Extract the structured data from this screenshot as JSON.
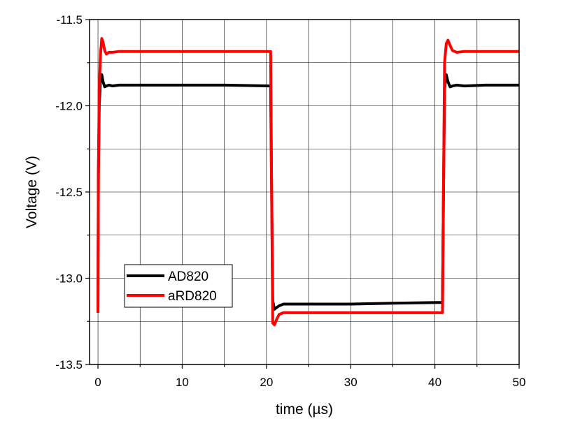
{
  "chart_data": {
    "type": "line",
    "title": "",
    "xlabel": "time (µs)",
    "ylabel": "Voltage (V)",
    "xlim": [
      -1,
      50
    ],
    "ylim": [
      -13.5,
      -11.5
    ],
    "xticks": [
      0,
      10,
      20,
      30,
      40,
      50
    ],
    "yticks": [
      -13.5,
      -13.0,
      -12.5,
      -12.0,
      -11.5
    ],
    "grid": true,
    "legend_position": "bottom-left",
    "series": [
      {
        "name": "AD820",
        "color": "#000000",
        "x": [
          0.0,
          0.05,
          0.15,
          0.3,
          0.45,
          0.6,
          0.8,
          1.0,
          1.3,
          1.7,
          2.5,
          5,
          10,
          15,
          20.5,
          20.6,
          20.75,
          20.95,
          21.2,
          21.5,
          22.0,
          23.0,
          30,
          35,
          40.9,
          41.0,
          41.15,
          41.35,
          41.55,
          41.8,
          42.1,
          42.6,
          43.5,
          46,
          50
        ],
        "values": [
          -13.2,
          -12.4,
          -12.0,
          -11.85,
          -11.82,
          -11.86,
          -11.89,
          -11.885,
          -11.88,
          -11.885,
          -11.88,
          -11.88,
          -11.88,
          -11.88,
          -11.885,
          -12.4,
          -13.13,
          -13.18,
          -13.17,
          -13.16,
          -13.15,
          -13.15,
          -13.15,
          -13.145,
          -13.14,
          -12.6,
          -11.9,
          -11.82,
          -11.86,
          -11.89,
          -11.885,
          -11.88,
          -11.885,
          -11.88,
          -11.88
        ]
      },
      {
        "name": "aRD820",
        "color": "#ff0000",
        "x": [
          0.0,
          0.05,
          0.15,
          0.3,
          0.45,
          0.6,
          0.8,
          1.0,
          1.3,
          1.7,
          2.5,
          4,
          10,
          15,
          20.5,
          20.6,
          20.75,
          20.95,
          21.2,
          21.5,
          22.0,
          23.0,
          30,
          35,
          40.9,
          41.0,
          41.15,
          41.35,
          41.55,
          41.8,
          42.1,
          42.6,
          43.5,
          46,
          50
        ],
        "values": [
          -13.2,
          -12.4,
          -11.9,
          -11.7,
          -11.61,
          -11.63,
          -11.68,
          -11.7,
          -11.69,
          -11.69,
          -11.685,
          -11.685,
          -11.685,
          -11.685,
          -11.685,
          -12.4,
          -13.26,
          -13.27,
          -13.24,
          -13.21,
          -13.2,
          -13.2,
          -13.2,
          -13.2,
          -13.2,
          -12.6,
          -11.75,
          -11.64,
          -11.62,
          -11.65,
          -11.68,
          -11.69,
          -11.685,
          -11.685,
          -11.685
        ]
      }
    ]
  }
}
